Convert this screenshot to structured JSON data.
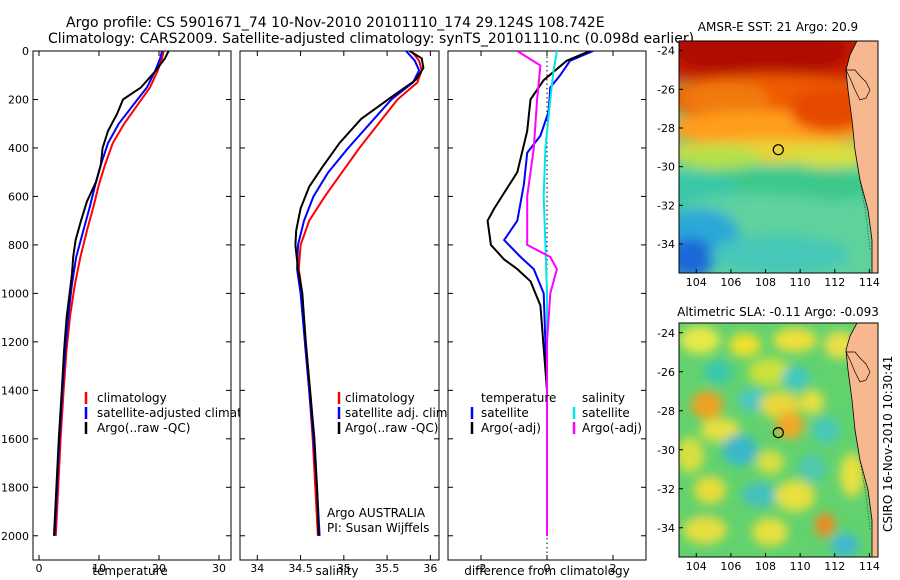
{
  "header": {
    "title_line1": "Argo profile: CS 5901671_74 10-Nov-2010 20101110_174 29.124S 108.742E",
    "title_line2": "Climatology: CARS2009. Satellite-adjusted climatology: synTS_20101110.nc (0.098d earlier)"
  },
  "colors": {
    "climatology": "#ff0000",
    "satellite": "#0000ff",
    "argo": "#000000",
    "sal_satellite": "#00e5ee",
    "sal_argo": "#ff00ff"
  },
  "chart_data": [
    {
      "id": "temperature",
      "type": "line",
      "xlabel": "temperature",
      "ylabel": "",
      "xlim": [
        -1,
        32
      ],
      "ylim": [
        2100,
        0
      ],
      "y_reversed": true,
      "xticks": [
        0,
        10,
        20,
        30
      ],
      "yticks": [
        0,
        200,
        400,
        600,
        800,
        1000,
        1200,
        1400,
        1600,
        1800,
        2000
      ],
      "legend": [
        "climatology",
        "satellite-adjusted climatology",
        "Argo(..raw -QC)"
      ],
      "series": [
        {
          "name": "climatology",
          "color_key": "climatology",
          "points": [
            [
              20.8,
              0
            ],
            [
              20.5,
              30
            ],
            [
              19.8,
              80
            ],
            [
              18.5,
              150
            ],
            [
              16.5,
              220
            ],
            [
              14.2,
              300
            ],
            [
              12.3,
              380
            ],
            [
              11,
              470
            ],
            [
              10,
              550
            ],
            [
              9.1,
              640
            ],
            [
              8,
              740
            ],
            [
              6.9,
              850
            ],
            [
              6,
              960
            ],
            [
              5.2,
              1090
            ],
            [
              4.6,
              1230
            ],
            [
              4.1,
              1400
            ],
            [
              3.6,
              1600
            ],
            [
              3.2,
              1800
            ],
            [
              2.8,
              2000
            ]
          ]
        },
        {
          "name": "satellite-adjusted climatology",
          "color_key": "satellite",
          "points": [
            [
              20.5,
              0
            ],
            [
              20.2,
              30
            ],
            [
              19.4,
              80
            ],
            [
              18,
              150
            ],
            [
              15.8,
              220
            ],
            [
              13.3,
              300
            ],
            [
              11.5,
              380
            ],
            [
              10.3,
              470
            ],
            [
              9.4,
              550
            ],
            [
              8.5,
              640
            ],
            [
              7.4,
              740
            ],
            [
              6.2,
              850
            ],
            [
              5.5,
              960
            ],
            [
              4.9,
              1090
            ],
            [
              4.4,
              1230
            ],
            [
              3.9,
              1400
            ],
            [
              3.4,
              1600
            ],
            [
              3,
              1800
            ],
            [
              2.6,
              2000
            ]
          ]
        },
        {
          "name": "Argo(..raw -QC)",
          "color_key": "argo",
          "points": [
            [
              21.6,
              0
            ],
            [
              21,
              30
            ],
            [
              19.5,
              80
            ],
            [
              17,
              150
            ],
            [
              14,
              200
            ],
            [
              13,
              260
            ],
            [
              11.5,
              330
            ],
            [
              10.6,
              400
            ],
            [
              10.3,
              470
            ],
            [
              9.5,
              540
            ],
            [
              8,
              620
            ],
            [
              7,
              700
            ],
            [
              6.1,
              780
            ],
            [
              5.7,
              850
            ],
            [
              5.5,
              920
            ],
            [
              5.1,
              1000
            ],
            [
              4.6,
              1100
            ],
            [
              4.2,
              1230
            ],
            [
              3.8,
              1400
            ],
            [
              3.3,
              1600
            ],
            [
              2.9,
              1800
            ],
            [
              2.5,
              2000
            ]
          ]
        }
      ]
    },
    {
      "id": "salinity",
      "type": "line",
      "xlabel": "salinity",
      "ylabel": "",
      "xlim": [
        33.8,
        36.1
      ],
      "ylim": [
        2100,
        0
      ],
      "y_reversed": true,
      "xticks": [
        34,
        34.5,
        35,
        35.5,
        36
      ],
      "legend": [
        "climatology",
        "satellite adj. clim.",
        "Argo(..raw -QC)"
      ],
      "annotations": [
        "Argo AUSTRALIA",
        "PI: Susan Wijffels"
      ],
      "series": [
        {
          "name": "climatology",
          "color_key": "climatology",
          "points": [
            [
              35.78,
              0
            ],
            [
              35.87,
              40
            ],
            [
              35.9,
              80
            ],
            [
              35.85,
              130
            ],
            [
              35.62,
              200
            ],
            [
              35.4,
              300
            ],
            [
              35.18,
              400
            ],
            [
              34.98,
              500
            ],
            [
              34.78,
              600
            ],
            [
              34.6,
              700
            ],
            [
              34.5,
              800
            ],
            [
              34.48,
              900
            ],
            [
              34.52,
              1000
            ],
            [
              34.55,
              1200
            ],
            [
              34.6,
              1400
            ],
            [
              34.64,
              1600
            ],
            [
              34.67,
              1800
            ],
            [
              34.7,
              2000
            ]
          ]
        },
        {
          "name": "satellite adj. clim.",
          "color_key": "satellite",
          "points": [
            [
              35.72,
              0
            ],
            [
              35.82,
              40
            ],
            [
              35.87,
              80
            ],
            [
              35.8,
              130
            ],
            [
              35.55,
              200
            ],
            [
              35.3,
              300
            ],
            [
              35.05,
              400
            ],
            [
              34.82,
              500
            ],
            [
              34.65,
              600
            ],
            [
              34.54,
              700
            ],
            [
              34.47,
              800
            ],
            [
              34.46,
              900
            ],
            [
              34.5,
              1000
            ],
            [
              34.55,
              1200
            ],
            [
              34.6,
              1400
            ],
            [
              34.65,
              1600
            ],
            [
              34.69,
              1800
            ],
            [
              34.72,
              2000
            ]
          ]
        },
        {
          "name": "Argo(..raw -QC)",
          "color_key": "argo",
          "points": [
            [
              35.76,
              0
            ],
            [
              35.9,
              30
            ],
            [
              35.92,
              70
            ],
            [
              35.83,
              120
            ],
            [
              35.55,
              190
            ],
            [
              35.2,
              280
            ],
            [
              34.95,
              380
            ],
            [
              34.75,
              480
            ],
            [
              34.6,
              560
            ],
            [
              34.5,
              650
            ],
            [
              34.45,
              740
            ],
            [
              34.44,
              800
            ],
            [
              34.47,
              900
            ],
            [
              34.52,
              1000
            ],
            [
              34.56,
              1200
            ],
            [
              34.61,
              1400
            ],
            [
              34.66,
              1600
            ],
            [
              34.69,
              1800
            ],
            [
              34.71,
              2000
            ]
          ]
        }
      ]
    },
    {
      "id": "difference",
      "type": "line",
      "xlabel": "difference from climatology",
      "ylabel": "",
      "xlim": [
        -3,
        3
      ],
      "ylim": [
        2100,
        0
      ],
      "y_reversed": true,
      "xticks": [
        -2,
        0,
        2
      ],
      "legend_left_title": "temperature",
      "legend_right_title": "salinity",
      "legend": [
        "satellite",
        "Argo(-adj)",
        "satellite",
        "Argo(-adj)"
      ],
      "series": [
        {
          "name": "satellite",
          "color_key": "satellite",
          "points": [
            [
              1.4,
              0
            ],
            [
              0.7,
              40
            ],
            [
              0.4,
              100
            ],
            [
              0.1,
              150
            ],
            [
              0.05,
              250
            ],
            [
              -0.2,
              350
            ],
            [
              -0.6,
              420
            ],
            [
              -0.7,
              550
            ],
            [
              -0.9,
              700
            ],
            [
              -1.3,
              780
            ],
            [
              -0.8,
              850
            ],
            [
              -0.4,
              900
            ],
            [
              -0.1,
              1000
            ],
            [
              0,
              1400
            ],
            [
              0,
              2000
            ]
          ]
        },
        {
          "name": "Argo(-adj)",
          "color_key": "argo",
          "points": [
            [
              1.3,
              0
            ],
            [
              0.6,
              40
            ],
            [
              -0.1,
              120
            ],
            [
              -0.5,
              200
            ],
            [
              -0.6,
              330
            ],
            [
              -0.9,
              500
            ],
            [
              -1.6,
              650
            ],
            [
              -1.8,
              700
            ],
            [
              -1.7,
              800
            ],
            [
              -1.3,
              860
            ],
            [
              -0.9,
              900
            ],
            [
              -0.5,
              950
            ],
            [
              -0.2,
              1050
            ],
            [
              0,
              1400
            ],
            [
              0,
              2000
            ]
          ]
        },
        {
          "name": "satellite",
          "color_key": "sal_satellite",
          "points": [
            [
              0.3,
              0
            ],
            [
              0.2,
              80
            ],
            [
              0.1,
              200
            ],
            [
              -0.05,
              400
            ],
            [
              -0.1,
              600
            ],
            [
              -0.05,
              800
            ],
            [
              0,
              1000
            ],
            [
              0,
              2000
            ]
          ]
        },
        {
          "name": "Argo(-adj)",
          "color_key": "sal_argo",
          "points": [
            [
              -0.9,
              0
            ],
            [
              -0.2,
              60
            ],
            [
              -0.3,
              200
            ],
            [
              -0.4,
              400
            ],
            [
              -0.6,
              600
            ],
            [
              -0.6,
              800
            ],
            [
              0.1,
              850
            ],
            [
              0.3,
              900
            ],
            [
              0.1,
              1000
            ],
            [
              0,
              1200
            ],
            [
              0,
              2000
            ]
          ]
        }
      ]
    },
    {
      "id": "sst-map",
      "type": "heatmap",
      "title": "AMSR-E SST: 21 Argo: 20.9",
      "xlim": [
        103,
        114.5
      ],
      "ylim": [
        -35.5,
        -23.5
      ],
      "xticks": [
        104,
        106,
        108,
        110,
        112,
        114
      ],
      "yticks": [
        -24,
        -26,
        -28,
        -30,
        -32,
        -34
      ],
      "marker": [
        108.74,
        -29.12
      ]
    },
    {
      "id": "sla-map",
      "type": "heatmap",
      "title": "Altimetric SLA: -0.11 Argo: -0.093",
      "xlim": [
        103,
        114.5
      ],
      "ylim": [
        -35.5,
        -23.5
      ],
      "xticks": [
        104,
        106,
        108,
        110,
        112,
        114
      ],
      "yticks": [
        -24,
        -26,
        -28,
        -30,
        -32,
        -34
      ],
      "marker": [
        108.74,
        -29.12
      ]
    }
  ],
  "side_text": "CSIRO 16-Nov-2010 10:30:41"
}
